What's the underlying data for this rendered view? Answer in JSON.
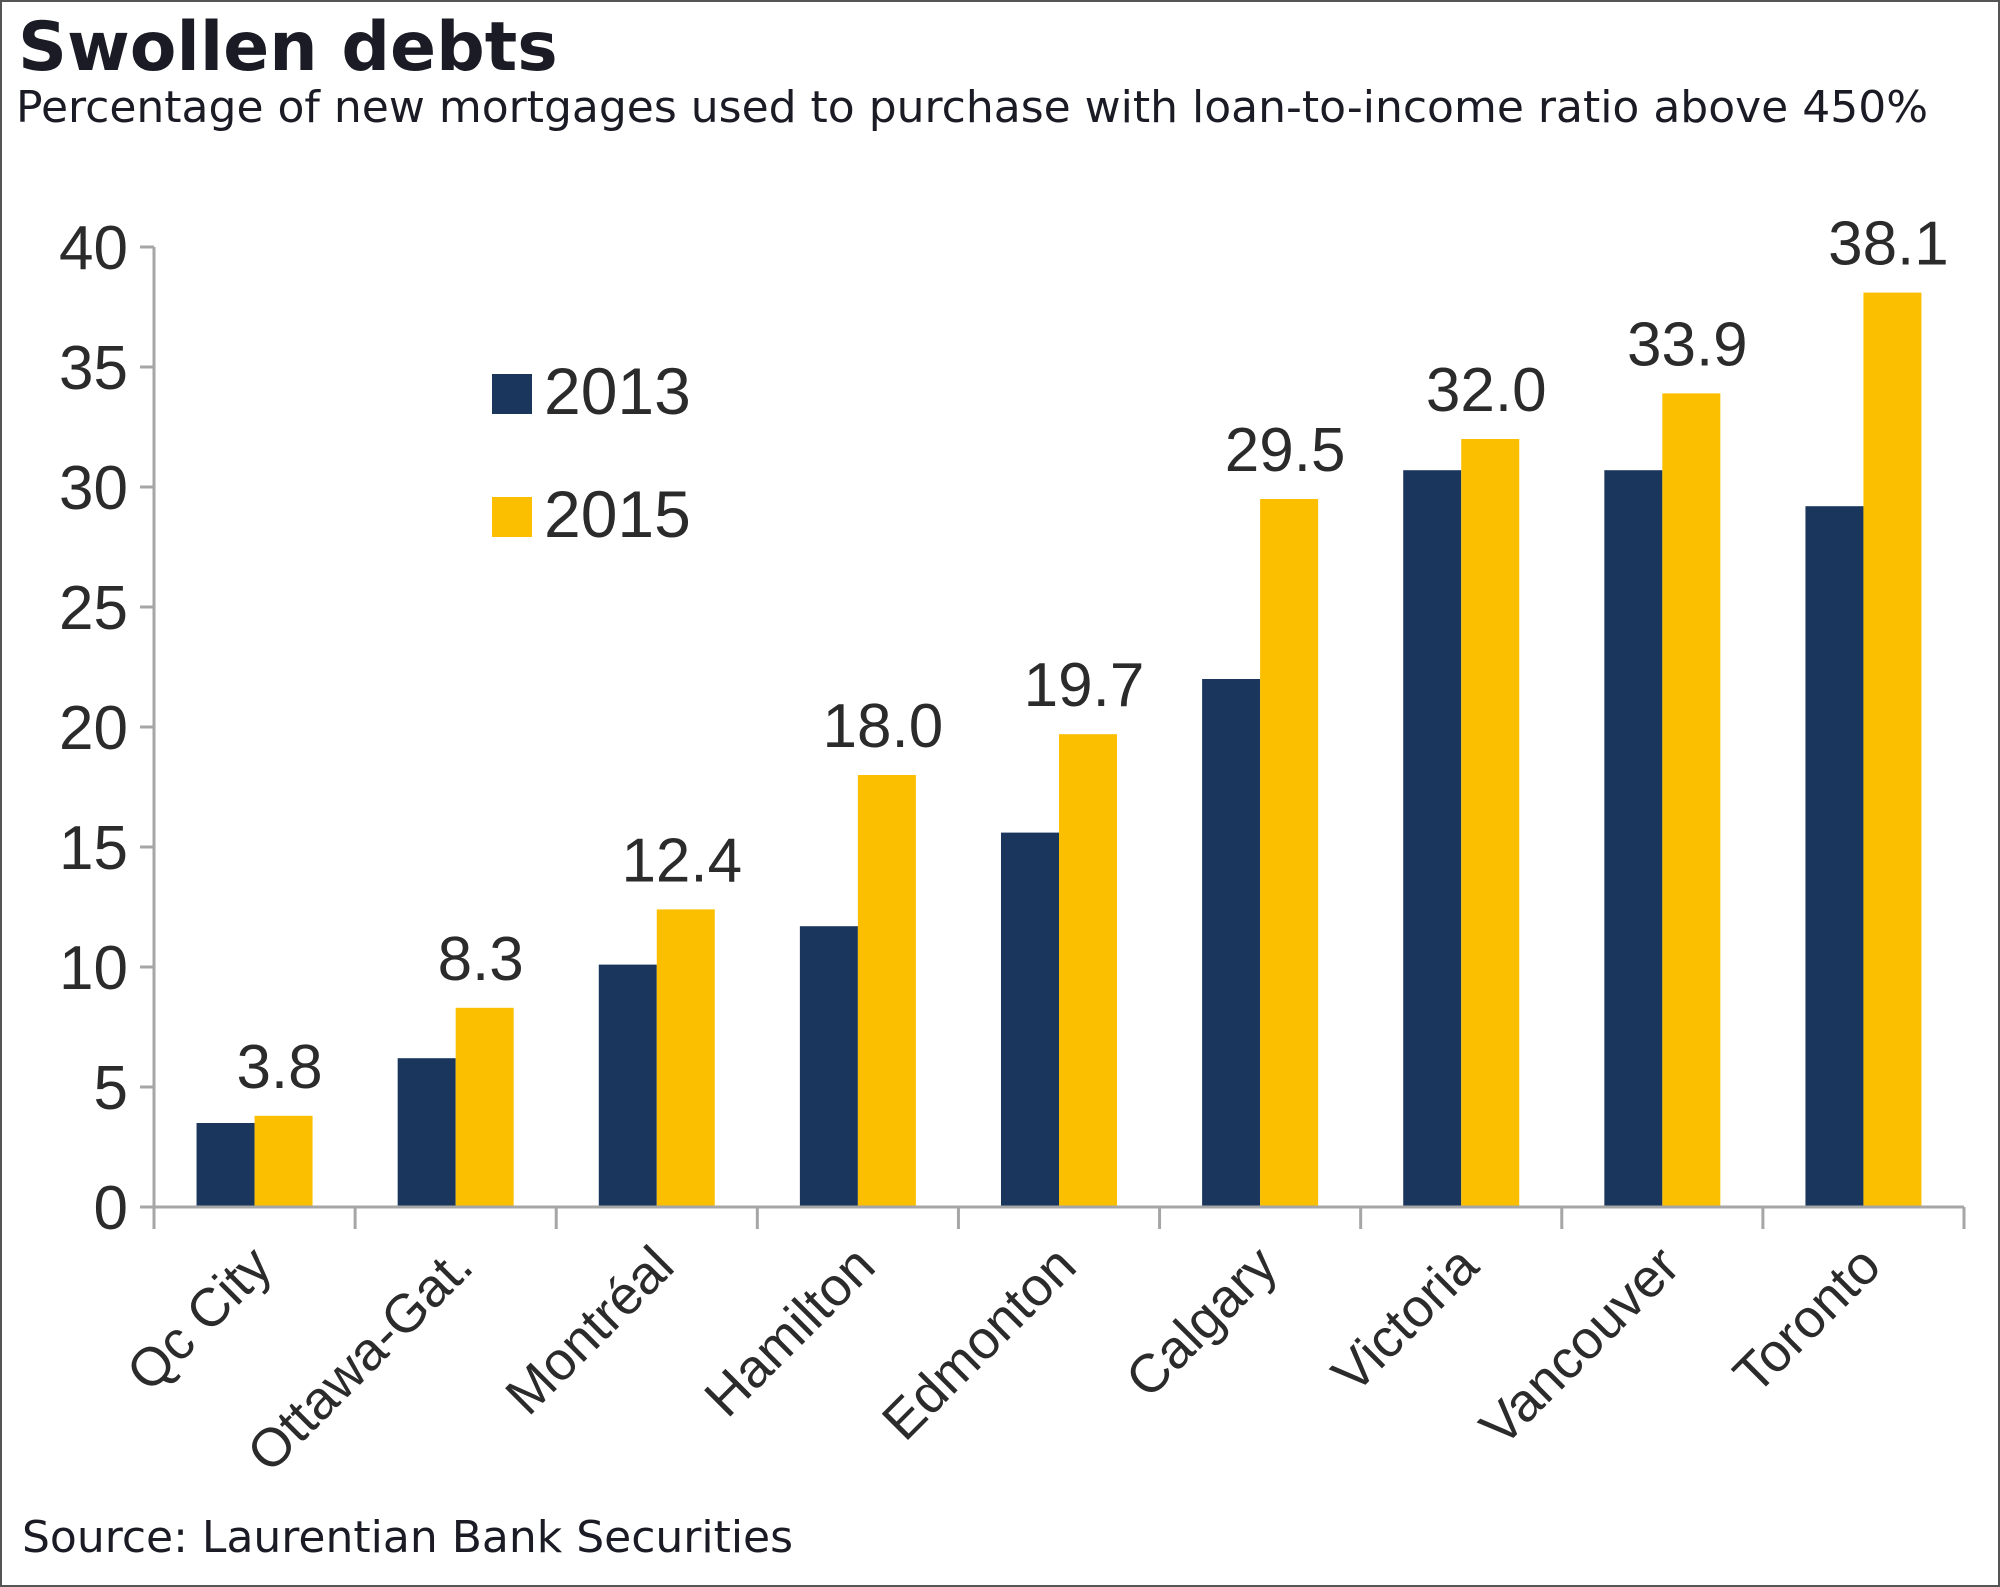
{
  "title": "Swollen debts",
  "subtitle": "Percentage of new mortgages used to purchase with loan-to-income ratio above 450%",
  "source": "Source: Laurentian Bank Securities",
  "colors": {
    "2013": "#1b365d",
    "2015": "#fbbf00",
    "axis": "#a6a6a6",
    "text": "#2b2b2b"
  },
  "chart_data": {
    "type": "bar",
    "categories": [
      "Qc City",
      "Ottawa-Gat.",
      "Montréal",
      "Hamilton",
      "Edmonton",
      "Calgary",
      "Victoria",
      "Vancouver",
      "Toronto"
    ],
    "series": [
      {
        "name": "2013",
        "values": [
          3.5,
          6.2,
          10.1,
          11.7,
          15.6,
          22.0,
          30.7,
          30.7,
          29.2
        ]
      },
      {
        "name": "2015",
        "values": [
          3.8,
          8.3,
          12.4,
          18.0,
          19.7,
          29.5,
          32.0,
          33.9,
          38.1
        ]
      }
    ],
    "data_labels": [
      "3.8",
      "8.3",
      "12.4",
      "18.0",
      "19.7",
      "29.5",
      "32.0",
      "33.9",
      "38.1"
    ],
    "yticks": [
      "0",
      "5",
      "10",
      "15",
      "20",
      "25",
      "30",
      "35",
      "40"
    ],
    "ylim": [
      0,
      40
    ],
    "legend_position": "top-left",
    "grid": false
  }
}
